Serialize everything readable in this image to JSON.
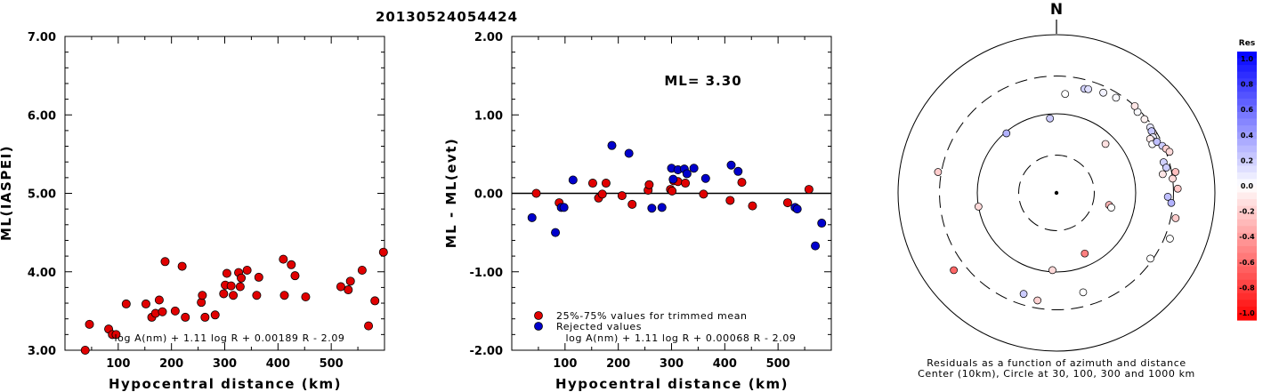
{
  "page_title": "20130524054424",
  "chart_data": [
    {
      "type": "scatter",
      "title": "",
      "xlabel": "Hypocentral distance (km)",
      "ylabel": "ML(IASPEI)",
      "xlim": [
        0,
        600
      ],
      "ylim": [
        3.0,
        7.0
      ],
      "xticks": [
        100,
        200,
        300,
        400,
        500
      ],
      "xtick_labels": [
        "100",
        "200",
        "300",
        "400",
        "500"
      ],
      "yticks": [
        3,
        4,
        5,
        6,
        7
      ],
      "ytick_labels": [
        "3.00",
        "4.00",
        "5.00",
        "6.00",
        "7.00"
      ],
      "formula": "log A(nm) + 1.11 log R + 0.00189 R - 2.09",
      "point_color": "#e00000",
      "x": [
        38,
        46,
        82,
        89,
        96,
        115,
        152,
        163,
        170,
        177,
        183,
        188,
        207,
        220,
        226,
        256,
        258,
        263,
        282,
        298,
        301,
        304,
        312,
        316,
        326,
        329,
        331,
        342,
        360,
        364,
        410,
        412,
        425,
        432,
        452,
        518,
        532,
        536,
        558,
        570,
        582,
        598
      ],
      "y": [
        3.0,
        3.33,
        3.27,
        3.2,
        3.2,
        3.59,
        3.59,
        3.42,
        3.47,
        3.64,
        3.49,
        4.13,
        3.5,
        4.07,
        3.42,
        3.61,
        3.7,
        3.42,
        3.45,
        3.72,
        3.83,
        3.98,
        3.82,
        3.7,
        3.99,
        3.81,
        3.92,
        4.02,
        3.7,
        3.93,
        4.16,
        3.7,
        4.09,
        3.95,
        3.68,
        3.81,
        3.77,
        3.88,
        4.02,
        3.31,
        3.63,
        4.25
      ]
    },
    {
      "type": "scatter",
      "title": "",
      "xlabel": "Hypocentral distance (km)",
      "ylabel": "ML - ML(evt)",
      "xlim": [
        0,
        600
      ],
      "ylim": [
        -2.0,
        2.0
      ],
      "xticks": [
        100,
        200,
        300,
        400,
        500
      ],
      "xtick_labels": [
        "100",
        "200",
        "300",
        "400",
        "500"
      ],
      "yticks": [
        -2,
        -1,
        0,
        1,
        2
      ],
      "ytick_labels": [
        "-2.00",
        "-1.00",
        "0.00",
        "1.00",
        "2.00"
      ],
      "zero_line": true,
      "annotation": "ML= 3.30",
      "formula": "log A(nm) + 1.11 log R + 0.00068 R - 2.09",
      "legend": [
        {
          "label": "25%-75% values for trimmed mean",
          "color": "#e00000"
        },
        {
          "label": "Rejected values",
          "color": "#0000cc"
        }
      ],
      "series": [
        {
          "name": "25%-75% values for trimmed mean",
          "color": "#e00000",
          "x": [
            46,
            89,
            152,
            163,
            170,
            177,
            207,
            226,
            256,
            258,
            298,
            301,
            304,
            312,
            326,
            360,
            410,
            432,
            452,
            518,
            558
          ],
          "y": [
            0.0,
            -0.12,
            0.13,
            -0.06,
            -0.01,
            0.13,
            -0.03,
            -0.14,
            0.04,
            0.11,
            0.05,
            0.03,
            0.16,
            0.15,
            0.13,
            -0.01,
            -0.09,
            0.14,
            -0.16,
            -0.12,
            0.05
          ]
        },
        {
          "name": "Rejected values",
          "color": "#0000cc",
          "x": [
            38,
            82,
            93,
            98,
            115,
            188,
            220,
            263,
            282,
            300,
            303,
            312,
            324,
            329,
            342,
            364,
            412,
            425,
            532,
            536,
            570,
            582
          ],
          "y": [
            -0.31,
            -0.5,
            -0.18,
            -0.18,
            0.17,
            0.61,
            0.51,
            -0.19,
            -0.18,
            0.32,
            0.18,
            0.3,
            0.31,
            0.25,
            0.32,
            0.19,
            0.36,
            0.28,
            -0.18,
            -0.2,
            -0.67,
            -0.38
          ]
        }
      ]
    },
    {
      "type": "scatter",
      "title": "",
      "north_label": "N",
      "caption_line1": "Residuals as a function of azimuth and distance",
      "caption_line2": "Center (10km), Circle at 30, 100, 300 and 1000 km",
      "rings_km": [
        10,
        30,
        100,
        300,
        1000
      ],
      "colorbar_title": "Res",
      "colorbar_labels": [
        "1.0",
        "0.8",
        "0.6",
        "0.4",
        "0.2",
        "0.0",
        "-0.2",
        "-0.4",
        "-0.6",
        "-0.8",
        "-1.0"
      ],
      "colorbar_max_color": "#0000ff",
      "colorbar_mid_color": "#ffffff",
      "colorbar_min_color": "#ff0000",
      "points": [
        {
          "azimuth": 15,
          "distance_km": 230,
          "residual": 0.18
        },
        {
          "azimuth": 17,
          "distance_km": 235,
          "residual": 0.12
        },
        {
          "azimuth": 25,
          "distance_km": 250,
          "residual": 0.05
        },
        {
          "azimuth": 32,
          "distance_km": 262,
          "residual": 0.02
        },
        {
          "azimuth": 5,
          "distance_km": 180,
          "residual": 0.0
        },
        {
          "azimuth": -5,
          "distance_km": 88,
          "residual": 0.2
        },
        {
          "azimuth": -40,
          "distance_km": 96,
          "residual": 0.3
        },
        {
          "azimuth": 45,
          "distance_km": 280,
          "residual": 0.02
        },
        {
          "azimuth": 42,
          "distance_km": 300,
          "residual": -0.1
        },
        {
          "azimuth": 50,
          "distance_km": 282,
          "residual": -0.05
        },
        {
          "azimuth": 55,
          "distance_km": 278,
          "residual": 0.1
        },
        {
          "azimuth": 58,
          "distance_km": 272,
          "residual": -0.12
        },
        {
          "azimuth": 57,
          "distance_km": 270,
          "residual": 0.22
        },
        {
          "azimuth": 60,
          "distance_km": 255,
          "residual": 0.08
        },
        {
          "azimuth": 62,
          "distance_km": 245,
          "residual": 0.05
        },
        {
          "azimuth": 60,
          "distance_km": 232,
          "residual": -0.08
        },
        {
          "azimuth": 63,
          "distance_km": 228,
          "residual": 0.02
        },
        {
          "azimuth": 63,
          "distance_km": 265,
          "residual": 0.25
        },
        {
          "azimuth": 66,
          "distance_km": 290,
          "residual": 0.2
        },
        {
          "azimuth": 68,
          "distance_km": 310,
          "residual": -0.18
        },
        {
          "azimuth": 70,
          "distance_km": 330,
          "residual": -0.15
        },
        {
          "azimuth": 74,
          "distance_km": 255,
          "residual": 0.18
        },
        {
          "azimuth": 77,
          "distance_km": 265,
          "residual": 0.2
        },
        {
          "azimuth": 80,
          "distance_km": 335,
          "residual": -0.25
        },
        {
          "azimuth": 80,
          "distance_km": 230,
          "residual": -0.1
        },
        {
          "azimuth": 83,
          "distance_km": 300,
          "residual": -0.15
        },
        {
          "azimuth": 88,
          "distance_km": 340,
          "residual": -0.22
        },
        {
          "azimuth": 92,
          "distance_km": 255,
          "residual": 0.25
        },
        {
          "azimuth": 95,
          "distance_km": 285,
          "residual": 0.3
        },
        {
          "azimuth": 102,
          "distance_km": 345,
          "residual": -0.2
        },
        {
          "azimuth": 45,
          "distance_km": 75,
          "residual": -0.12
        },
        {
          "azimuth": 103,
          "distance_km": 48,
          "residual": -0.3
        },
        {
          "azimuth": 105,
          "distance_km": 52,
          "residual": 0.0
        },
        {
          "azimuth": 112,
          "distance_km": 350,
          "residual": 0.0
        },
        {
          "azimuth": 125,
          "distance_km": 280,
          "residual": 0.0
        },
        {
          "azimuth": 155,
          "distance_km": 70,
          "residual": -0.5
        },
        {
          "azimuth": 165,
          "distance_km": 200,
          "residual": 0.0
        },
        {
          "azimuth": 183,
          "distance_km": 95,
          "residual": -0.15
        },
        {
          "azimuth": 190,
          "distance_km": 240,
          "residual": -0.18
        },
        {
          "azimuth": 198,
          "distance_km": 220,
          "residual": 0.2
        },
        {
          "azimuth": 233,
          "distance_km": 420,
          "residual": -0.6
        },
        {
          "azimuth": 260,
          "distance_km": 100,
          "residual": -0.15
        },
        {
          "azimuth": 280,
          "distance_km": 330,
          "residual": -0.2
        }
      ]
    }
  ]
}
